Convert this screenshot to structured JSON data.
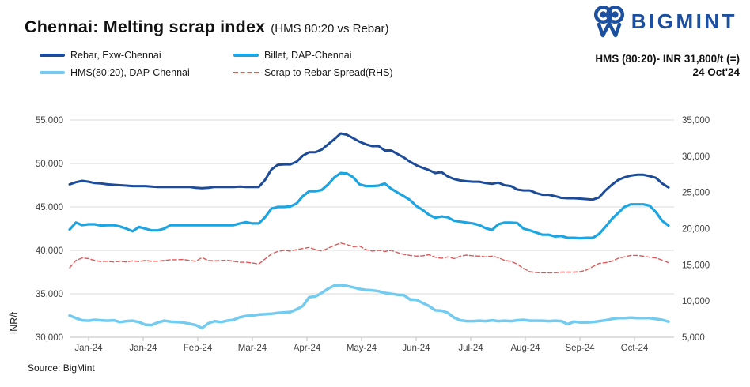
{
  "header": {
    "title": "Chennai: Melting scrap index",
    "subtitle": "(HMS 80:20 vs Rebar)"
  },
  "logo": {
    "text": "BIGMINT"
  },
  "annotation": {
    "line1": "HMS (80:20)- INR 31,800/t (=)",
    "line2": "24 Oct'24"
  },
  "source": "Source: BigMint",
  "colors": {
    "rebar": "#1b4b99",
    "billet": "#1da5e2",
    "hms": "#74cbf0",
    "spread": "#e15656",
    "grid": "#d9d9d9",
    "axis_line": "#bfbfbf",
    "tick_text": "#404040",
    "logo_blue": "#1c4f9f"
  },
  "legend": [
    {
      "label": "Rebar, Exw-Chennai",
      "series": "rebar",
      "dashed": false
    },
    {
      "label": "Billet, DAP-Chennai",
      "series": "billet",
      "dashed": false
    },
    {
      "label": "HMS(80:20), DAP-Chennai",
      "series": "hms",
      "dashed": false
    },
    {
      "label": "Scrap to Rebar Spread(RHS)",
      "series": "spread",
      "dashed": true
    }
  ],
  "chart_data": {
    "type": "line",
    "title": "Chennai: Melting scrap index (HMS 80:20 vs Rebar)",
    "ylabel_left": "INR/t",
    "grid": true,
    "legend_position": "top-left",
    "x_tick_labels": [
      "Jan-24",
      "Jan-24",
      "Feb-24",
      "Mar-24",
      "Apr-24",
      "May-24",
      "Jun-24",
      "Jul-24",
      "Aug-24",
      "Sep-24",
      "Oct-24"
    ],
    "left_axis": {
      "min": 30000,
      "max": 55000,
      "ticks": [
        55000,
        50000,
        45000,
        40000,
        35000,
        30000
      ]
    },
    "right_axis": {
      "min": 5000,
      "max": 35000,
      "ticks": [
        35000,
        30000,
        25000,
        20000,
        15000,
        10000,
        5000
      ]
    },
    "series": [
      {
        "name": "Rebar, Exw-Chennai",
        "axis": "left",
        "color": "rebar",
        "dashed": false,
        "width": 3,
        "values": [
          47600,
          47850,
          48000,
          47900,
          47750,
          47700,
          47600,
          47550,
          47500,
          47450,
          47400,
          47400,
          47400,
          47350,
          47300,
          47300,
          47300,
          47300,
          47300,
          47300,
          47200,
          47150,
          47200,
          47300,
          47300,
          47300,
          47300,
          47350,
          47300,
          47300,
          47300,
          48100,
          49300,
          49850,
          49900,
          49900,
          50200,
          50900,
          51300,
          51300,
          51600,
          52200,
          52800,
          53450,
          53300,
          52900,
          52500,
          52200,
          52000,
          52000,
          51500,
          51500,
          51100,
          50700,
          50200,
          49800,
          49500,
          49250,
          48900,
          49000,
          48500,
          48200,
          48050,
          47950,
          47900,
          47900,
          47750,
          47650,
          47800,
          47500,
          47400,
          47000,
          46900,
          46900,
          46600,
          46400,
          46400,
          46250,
          46050,
          46000,
          46000,
          45950,
          45900,
          45850,
          46100,
          46900,
          47550,
          48100,
          48400,
          48600,
          48700,
          48700,
          48550,
          48350,
          47700,
          47250
        ]
      },
      {
        "name": "Billet, DAP-Chennai",
        "axis": "left",
        "color": "billet",
        "dashed": false,
        "width": 3.2,
        "values": [
          42400,
          43200,
          42900,
          43000,
          43000,
          42850,
          42900,
          42900,
          42750,
          42500,
          42200,
          42700,
          42500,
          42300,
          42300,
          42500,
          42900,
          42900,
          42900,
          42900,
          42900,
          42900,
          42900,
          42900,
          42900,
          42900,
          42900,
          43100,
          43250,
          43100,
          43100,
          43800,
          44800,
          45000,
          45000,
          45050,
          45400,
          46250,
          46800,
          46800,
          46950,
          47600,
          48400,
          48900,
          48850,
          48400,
          47600,
          47400,
          47400,
          47450,
          47700,
          47100,
          46650,
          46250,
          45800,
          45100,
          44650,
          44100,
          43750,
          43900,
          43800,
          43400,
          43300,
          43200,
          43100,
          42900,
          42550,
          42350,
          43000,
          43200,
          43200,
          43150,
          42500,
          42300,
          42050,
          41800,
          41800,
          41600,
          41650,
          41450,
          41450,
          41400,
          41450,
          41450,
          41900,
          42700,
          43600,
          44300,
          45000,
          45300,
          45300,
          45300,
          45150,
          44400,
          43400,
          42850
        ]
      },
      {
        "name": "HMS(80:20), DAP-Chennai",
        "axis": "left",
        "color": "hms",
        "dashed": false,
        "width": 3.5,
        "values": [
          32500,
          32200,
          31950,
          31900,
          32000,
          31950,
          31900,
          31950,
          31750,
          31850,
          31900,
          31750,
          31450,
          31400,
          31700,
          31900,
          31800,
          31750,
          31700,
          31550,
          31400,
          31050,
          31600,
          31850,
          31750,
          31900,
          32000,
          32300,
          32450,
          32500,
          32600,
          32650,
          32700,
          32800,
          32850,
          32900,
          33200,
          33600,
          34600,
          34700,
          35100,
          35600,
          35950,
          36000,
          35900,
          35750,
          35550,
          35450,
          35400,
          35300,
          35100,
          35000,
          34900,
          34850,
          34350,
          34300,
          33950,
          33600,
          33100,
          33050,
          32800,
          32250,
          31950,
          31850,
          31850,
          31900,
          31850,
          31950,
          31850,
          31900,
          31850,
          31950,
          32000,
          31900,
          31900,
          31900,
          31850,
          31900,
          31850,
          31500,
          31800,
          31700,
          31700,
          31750,
          31850,
          31950,
          32100,
          32200,
          32200,
          32250,
          32200,
          32200,
          32200,
          32100,
          32000,
          31800
        ]
      },
      {
        "name": "Scrap to Rebar Spread(RHS)",
        "axis": "right",
        "color": "spread",
        "dashed": true,
        "width": 1.4,
        "values": [
          14600,
          15600,
          15950,
          15850,
          15600,
          15450,
          15500,
          15400,
          15500,
          15400,
          15550,
          15450,
          15600,
          15500,
          15500,
          15600,
          15700,
          15700,
          15750,
          15600,
          15500,
          16000,
          15600,
          15550,
          15600,
          15650,
          15500,
          15350,
          15350,
          15250,
          15100,
          15800,
          16500,
          16850,
          17000,
          16900,
          17100,
          17250,
          17400,
          17100,
          16900,
          17300,
          17700,
          18000,
          17800,
          17500,
          17600,
          17100,
          16900,
          17000,
          16850,
          17000,
          16700,
          16450,
          16300,
          16200,
          16250,
          16400,
          16050,
          15900,
          16100,
          15850,
          16200,
          16350,
          16250,
          16200,
          16100,
          16200,
          16000,
          15600,
          15500,
          15100,
          14500,
          14050,
          13950,
          13900,
          13900,
          13900,
          14000,
          14000,
          14000,
          14050,
          14300,
          14750,
          15200,
          15300,
          15500,
          15900,
          16100,
          16300,
          16300,
          16200,
          16050,
          15950,
          15650,
          15300
        ]
      }
    ]
  }
}
